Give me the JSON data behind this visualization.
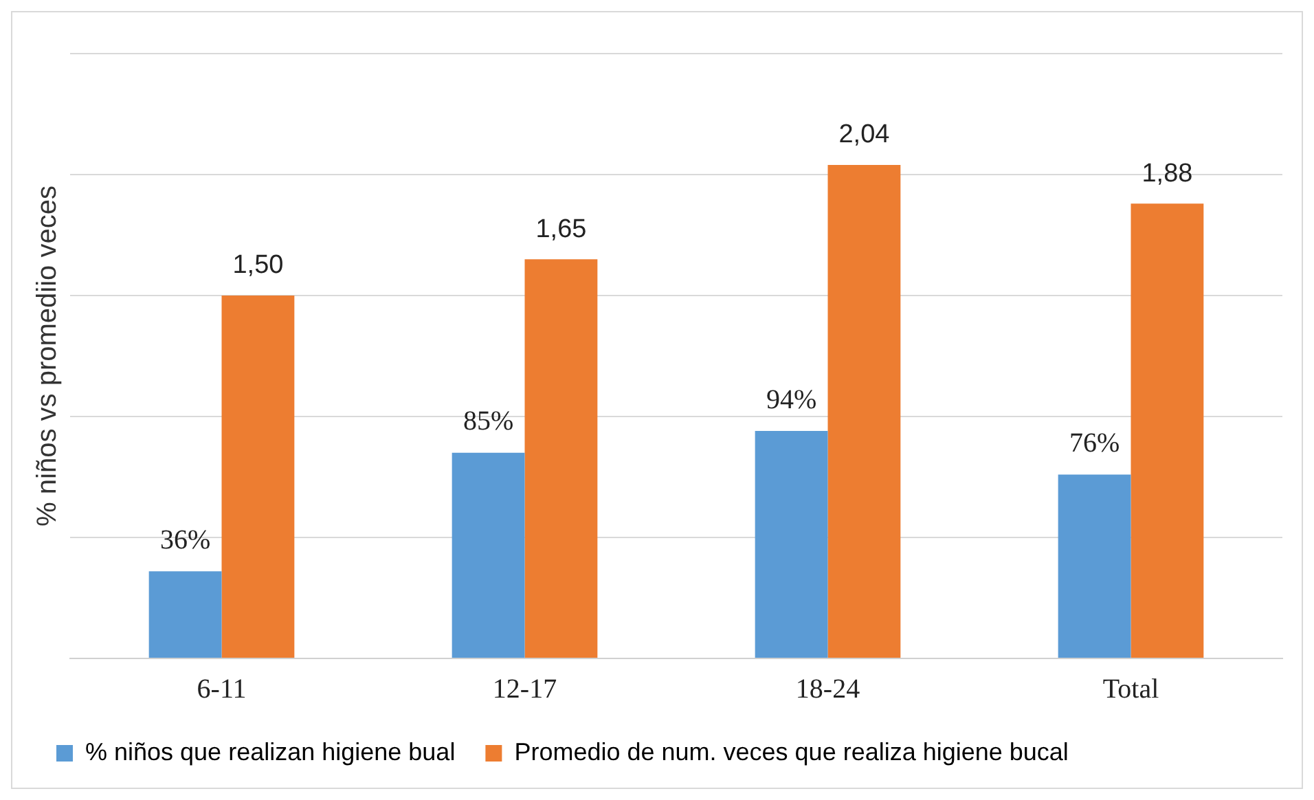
{
  "chart_data": {
    "type": "bar",
    "ylabel": "% niños vs promediio veces",
    "categories": [
      "6-11",
      "12-17",
      "18-24",
      "Total"
    ],
    "series": [
      {
        "name": "% niños que realizan higiene bual",
        "color": "#5b9bd5",
        "values": [
          0.36,
          0.85,
          0.94,
          0.76
        ],
        "value_labels": [
          "36%",
          "85%",
          "94%",
          "76%"
        ]
      },
      {
        "name": "Promedio de num. veces que realiza higiene bucal",
        "color": "#ed7d31",
        "values": [
          1.5,
          1.65,
          2.04,
          1.88
        ],
        "value_labels": [
          "1,50",
          "1,65",
          "2,04",
          "1,88"
        ]
      }
    ],
    "ylim": [
      0,
      2.5
    ],
    "yticks": [
      {
        "value": 0,
        "label": null
      },
      {
        "value": 0.5,
        "label": null
      },
      {
        "value": 1,
        "label": null
      },
      {
        "value": 1.5,
        "label": null
      },
      {
        "value": 2,
        "label": null
      },
      {
        "value": 2.5,
        "label": null
      }
    ],
    "tick_labels": "x",
    "grid": "y",
    "legend": "bottom"
  }
}
